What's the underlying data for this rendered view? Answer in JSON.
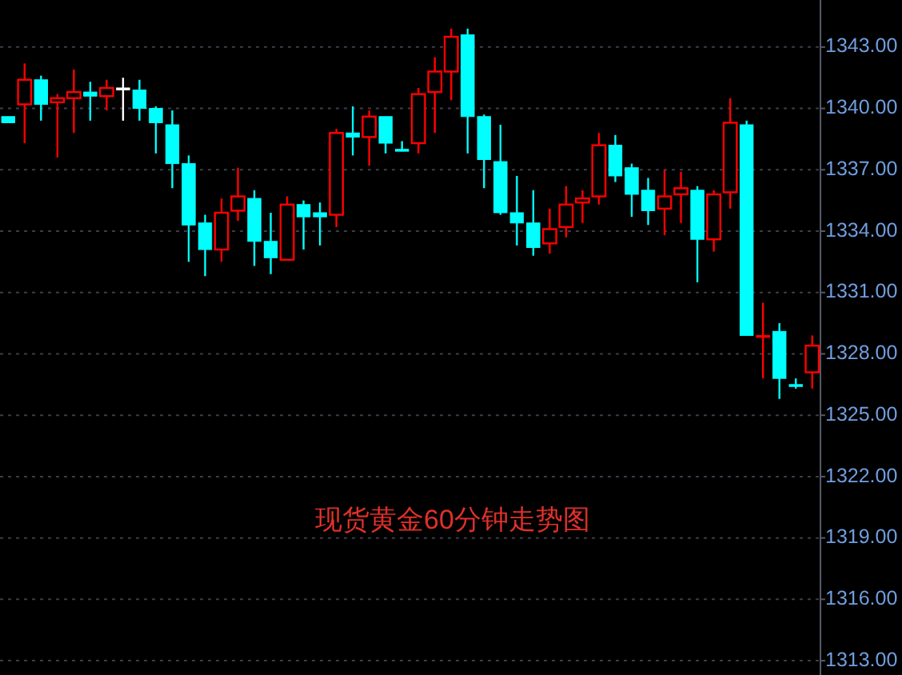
{
  "chart_data": {
    "type": "candlestick",
    "title": "现货黄金60分钟走势图",
    "categories": [
      null,
      null,
      null,
      null,
      null,
      null,
      null,
      null,
      null,
      null,
      null,
      null,
      null,
      null,
      null,
      null,
      null,
      null,
      null,
      null,
      null,
      null,
      null,
      null,
      null,
      null,
      null,
      null,
      null,
      null,
      null,
      null,
      null,
      null,
      null,
      null,
      null,
      null,
      null,
      null,
      null,
      null,
      null,
      null,
      null,
      null,
      null,
      null,
      null,
      null
    ],
    "ohlc": [
      [
        1339.6,
        1339.6,
        1339.3,
        1339.3
      ],
      [
        1340.2,
        1342.2,
        1338.3,
        1341.4
      ],
      [
        1341.4,
        1341.6,
        1339.4,
        1340.2
      ],
      [
        1340.3,
        1340.7,
        1337.6,
        1340.5
      ],
      [
        1340.5,
        1341.9,
        1338.8,
        1340.8
      ],
      [
        1340.8,
        1341.3,
        1339.4,
        1340.6
      ],
      [
        1340.6,
        1341.4,
        1339.9,
        1341.0
      ],
      [
        1341.0,
        1341.5,
        1339.4,
        1341.0
      ],
      [
        1340.9,
        1341.4,
        1339.4,
        1340.0
      ],
      [
        1340.0,
        1340.1,
        1337.8,
        1339.3
      ],
      [
        1339.2,
        1339.9,
        1336.1,
        1337.3
      ],
      [
        1337.3,
        1337.7,
        1332.5,
        1334.3
      ],
      [
        1334.4,
        1334.8,
        1331.8,
        1333.1
      ],
      [
        1333.1,
        1335.6,
        1332.5,
        1334.9
      ],
      [
        1335.0,
        1337.1,
        1334.5,
        1335.7
      ],
      [
        1335.6,
        1336.0,
        1332.3,
        1333.5
      ],
      [
        1333.5,
        1334.9,
        1331.9,
        1332.7
      ],
      [
        1332.6,
        1335.7,
        1332.6,
        1335.3
      ],
      [
        1335.3,
        1335.5,
        1333.1,
        1334.7
      ],
      [
        1334.9,
        1335.4,
        1333.3,
        1334.7
      ],
      [
        1334.8,
        1339.0,
        1334.2,
        1338.8
      ],
      [
        1338.8,
        1340.1,
        1337.7,
        1338.6
      ],
      [
        1338.6,
        1339.9,
        1337.2,
        1339.6
      ],
      [
        1339.6,
        1339.6,
        1337.8,
        1338.3
      ],
      [
        1338.0,
        1338.4,
        1337.9,
        1338.0
      ],
      [
        1338.3,
        1341.0,
        1337.8,
        1340.7
      ],
      [
        1340.8,
        1342.5,
        1338.8,
        1341.8
      ],
      [
        1341.8,
        1343.9,
        1340.4,
        1343.5
      ],
      [
        1343.6,
        1343.9,
        1337.8,
        1339.6
      ],
      [
        1339.6,
        1339.7,
        1336.1,
        1337.5
      ],
      [
        1337.4,
        1339.2,
        1334.8,
        1334.9
      ],
      [
        1334.9,
        1336.7,
        1333.3,
        1334.4
      ],
      [
        1334.4,
        1336.0,
        1332.8,
        1333.2
      ],
      [
        1333.4,
        1335.1,
        1332.9,
        1334.1
      ],
      [
        1334.2,
        1336.2,
        1333.7,
        1335.3
      ],
      [
        1335.4,
        1336.0,
        1334.4,
        1335.6
      ],
      [
        1335.7,
        1338.8,
        1335.3,
        1338.2
      ],
      [
        1338.2,
        1338.7,
        1336.4,
        1336.7
      ],
      [
        1337.1,
        1337.3,
        1334.7,
        1335.8
      ],
      [
        1336.0,
        1336.6,
        1334.3,
        1335.0
      ],
      [
        1335.1,
        1337.0,
        1333.8,
        1335.7
      ],
      [
        1335.8,
        1336.9,
        1334.4,
        1336.1
      ],
      [
        1336.0,
        1336.2,
        1331.5,
        1333.6
      ],
      [
        1333.6,
        1336.0,
        1333.0,
        1335.8
      ],
      [
        1335.9,
        1340.5,
        1335.1,
        1339.3
      ],
      [
        1339.2,
        1339.4,
        1328.9,
        1328.9
      ],
      [
        1328.9,
        1330.5,
        1326.8,
        1328.9
      ],
      [
        1329.1,
        1329.5,
        1325.8,
        1326.8
      ],
      [
        1326.5,
        1326.8,
        1326.3,
        1326.5
      ],
      [
        1327.1,
        1328.9,
        1326.3,
        1328.4
      ]
    ],
    "colors": [
      "#00ffff",
      "#ff0000",
      "#00ffff",
      "#ff0000",
      "#ff0000",
      "#00ffff",
      "#ff0000",
      "#ffffff",
      "#00ffff",
      "#00ffff",
      "#00ffff",
      "#00ffff",
      "#00ffff",
      "#ff0000",
      "#ff0000",
      "#00ffff",
      "#00ffff",
      "#ff0000",
      "#00ffff",
      "#00ffff",
      "#ff0000",
      "#00ffff",
      "#ff0000",
      "#00ffff",
      "#00ffff",
      "#ff0000",
      "#ff0000",
      "#ff0000",
      "#00ffff",
      "#00ffff",
      "#00ffff",
      "#00ffff",
      "#00ffff",
      "#ff0000",
      "#ff0000",
      "#ff0000",
      "#ff0000",
      "#00ffff",
      "#00ffff",
      "#00ffff",
      "#ff0000",
      "#ff0000",
      "#00ffff",
      "#ff0000",
      "#ff0000",
      "#00ffff",
      "#ff0000",
      "#00ffff",
      "#00ffff",
      "#ff0000"
    ],
    "ylim": [
      1312.3,
      1345.3
    ],
    "yticks": [
      {
        "value": 1343,
        "label": "1343.00"
      },
      {
        "value": 1340,
        "label": "1340.00"
      },
      {
        "value": 1337,
        "label": "1337.00"
      },
      {
        "value": 1334,
        "label": "1334.00"
      },
      {
        "value": 1331,
        "label": "1331.00"
      },
      {
        "value": 1328,
        "label": "1328.00"
      },
      {
        "value": 1325,
        "label": "1325.00"
      },
      {
        "value": 1322,
        "label": "1322.00"
      },
      {
        "value": 1319,
        "label": "1319.00"
      },
      {
        "value": 1316,
        "label": "1316.00"
      },
      {
        "value": 1313,
        "label": "1313.00"
      }
    ],
    "grid": "y",
    "tick_labels": "y"
  }
}
